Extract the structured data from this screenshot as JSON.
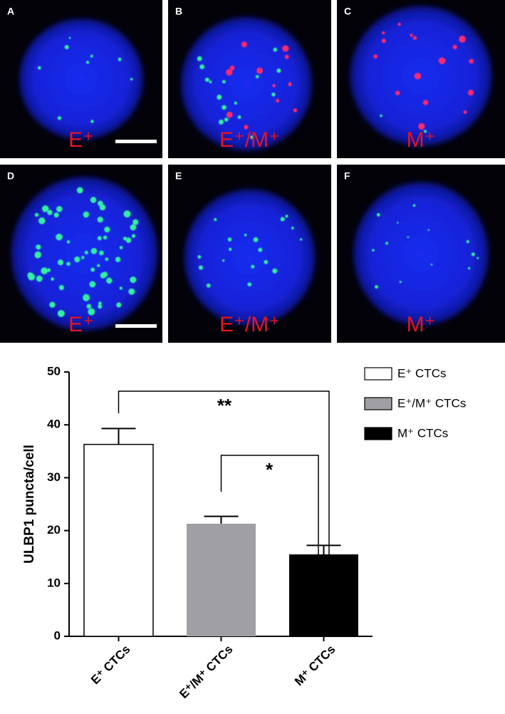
{
  "panels": [
    {
      "letter": "A",
      "label": "E⁺"
    },
    {
      "letter": "B",
      "label": "E⁺/M⁺"
    },
    {
      "letter": "C",
      "label": "M⁺"
    },
    {
      "letter": "D",
      "label": "E⁺"
    },
    {
      "letter": "E",
      "label": "E⁺/M⁺"
    },
    {
      "letter": "F",
      "label": "M⁺"
    }
  ],
  "chart_data": {
    "type": "bar",
    "y_label": "ULBP1  puncta/cell",
    "categories": [
      "E⁺ CTCs",
      "E⁺/M⁺ CTCs",
      "M⁺ CTCs"
    ],
    "values": [
      36.3,
      21.3,
      15.5
    ],
    "errors": [
      3.0,
      1.4,
      1.7
    ],
    "colors": [
      "#ffffff",
      "#a0a0a4",
      "#000000"
    ],
    "ylim": [
      0,
      50
    ],
    "yticks": [
      0,
      10,
      20,
      30,
      40,
      50
    ],
    "annotations": [
      {
        "text": "**"
      },
      {
        "text": "*"
      }
    ]
  }
}
